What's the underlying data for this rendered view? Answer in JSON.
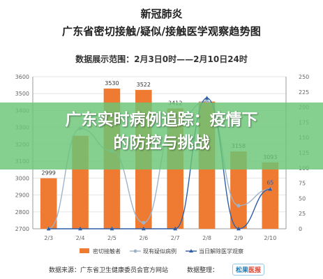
{
  "header": {
    "title": "新冠肺炎",
    "subtitle": "广东省密切接触/疑似/接触医学观察趋势图",
    "range_text": "数据展示范围：2月3日0时——2月10日24时"
  },
  "banner": {
    "line1": "广东实时病例追踪：疫情下",
    "line2": "的防控与挑战"
  },
  "footer": {
    "source": "数据来源：广东省卫生健康委员会官方网站",
    "organizer": "数据整理：",
    "logo_a": "松果",
    "logo_b": "医报"
  },
  "colors": {
    "bar": "#ee7b31",
    "line_suspected": "#9fb3c8",
    "line_release": "#2e5fa6",
    "grid": "#e5e5e5",
    "axis_text": "#666666",
    "banner": "#6ac676"
  },
  "chart_data": {
    "type": "bar",
    "categories": [
      "2/3",
      "2/4",
      "2/5",
      "2/6",
      "2/7",
      "2/8",
      "2/9",
      "2/10"
    ],
    "ylim": [
      2700,
      3600
    ],
    "yticks": [
      "2700",
      "2800",
      "2900",
      "3000",
      "3100",
      "3200",
      "3300",
      "3400",
      "3500",
      "3600"
    ],
    "y2lim": [
      0,
      250
    ],
    "y2ticks": [
      "0",
      "25",
      "50",
      "75",
      "100",
      "125",
      "150",
      "175",
      "200",
      "225",
      "250"
    ],
    "series": [
      {
        "name": "密切接触者",
        "kind": "bar",
        "axis": "left",
        "values": [
          2999,
          3250,
          3530,
          3522,
          3412,
          3453,
          3158,
          3093
        ],
        "labels": [
          "2999",
          "",
          "3530",
          "3522",
          "3412",
          "",
          "3158",
          "3093"
        ]
      },
      {
        "name": "现有疑似病例",
        "kind": "line",
        "axis": "right",
        "values": [
          0,
          165,
          128,
          10,
          175,
          210,
          38,
          65
        ]
      },
      {
        "name": "当日解除医学观察",
        "kind": "line",
        "axis": "right",
        "values": [
          0,
          0,
          0,
          0,
          0,
          215,
          0,
          65
        ],
        "labels": [
          "",
          "",
          "",
          "",
          "",
          "",
          "",
          "65"
        ]
      }
    ],
    "legend_position": "bottom"
  }
}
